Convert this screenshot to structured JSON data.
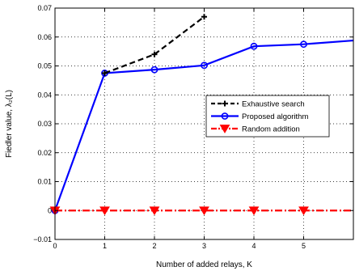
{
  "chart_data": {
    "type": "line",
    "title": "",
    "xlabel": "Number of added relays, K",
    "ylabel": "Fiedler value, λ₂(L)",
    "xlim": [
      0,
      6
    ],
    "ylim": [
      -0.01,
      0.07
    ],
    "xticks": [
      0,
      1,
      2,
      3,
      4,
      5
    ],
    "yticks": [
      -0.01,
      0,
      0.01,
      0.02,
      0.03,
      0.04,
      0.05,
      0.06,
      0.07
    ],
    "xtick_labels": [
      "0",
      "1",
      "2",
      "3",
      "4",
      "5"
    ],
    "ytick_labels": [
      "−0.01",
      "0",
      "0.01",
      "0.02",
      "0.03",
      "0.04",
      "0.05",
      "0.06",
      "0.07"
    ],
    "grid": true,
    "legend_position": "right-middle",
    "series": [
      {
        "name": "Exhaustive search",
        "color": "#000000",
        "line_style": "dashed",
        "marker": "plus",
        "x": [
          1,
          2,
          3
        ],
        "y": [
          0.0475,
          0.054,
          0.067
        ]
      },
      {
        "name": "Proposed algorithm",
        "color": "#0000ff",
        "line_style": "solid",
        "marker": "circle",
        "x": [
          0,
          1,
          2,
          3,
          4,
          5,
          6
        ],
        "y": [
          0.0,
          0.0475,
          0.0487,
          0.0502,
          0.0568,
          0.0575,
          0.0588
        ]
      },
      {
        "name": "Random addition",
        "color": "#ff0000",
        "line_style": "dashdot",
        "marker": "triangle-down",
        "x": [
          0,
          1,
          2,
          3,
          4,
          5,
          6
        ],
        "y": [
          0.0,
          0.0,
          0.0,
          0.0,
          0.0,
          0.0,
          0.0
        ]
      }
    ]
  }
}
